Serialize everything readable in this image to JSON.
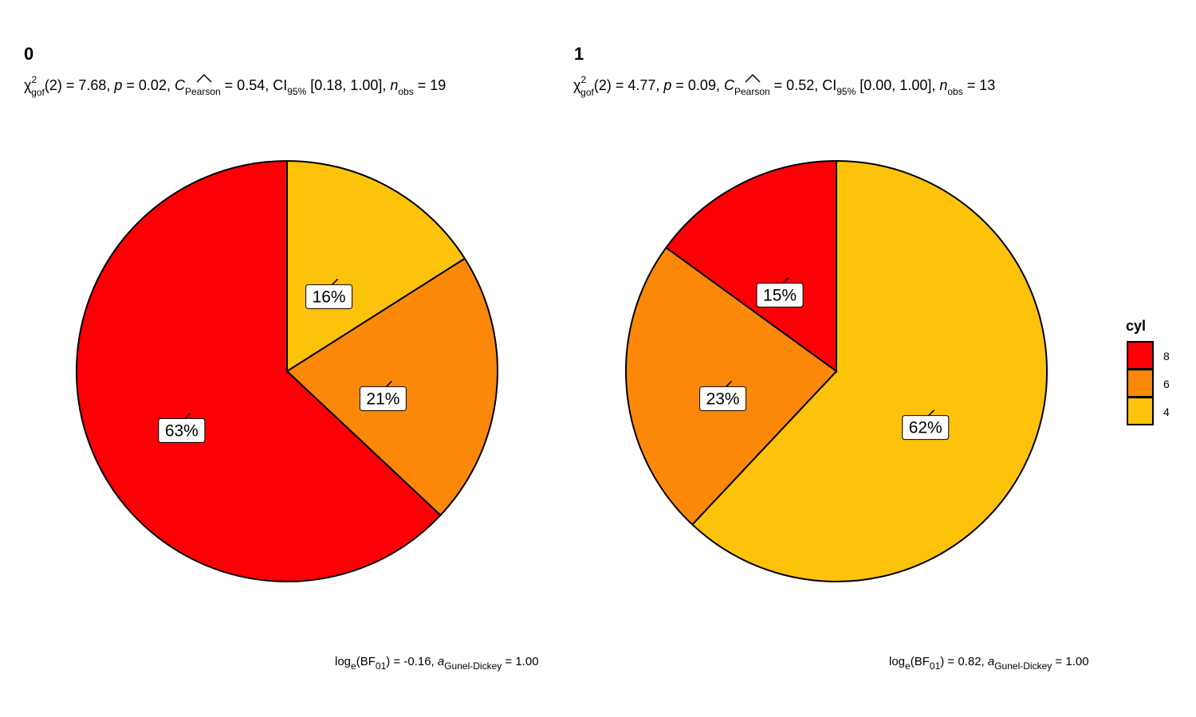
{
  "chart_data": [
    {
      "type": "pie",
      "title": "0",
      "subtitle": {
        "chi_sym": "χ",
        "chi_sup": "2",
        "chi_sub": "gof",
        "chi_val": "(2) = 7.68, ",
        "p_sym": "p",
        "p_val": " = 0.02, ",
        "c_sym": "C",
        "c_sub": "Pearson",
        "c_val": " = 0.54, ",
        "ci_sym": "CI",
        "ci_sub": "95%",
        "ci_val": " [0.18, 1.00], ",
        "n_sym": "n",
        "n_sub": "obs",
        "n_val": " = 19"
      },
      "caption": {
        "log_sym": "log",
        "log_sub": "e",
        "bf_open": "(BF",
        "bf_sub": "01",
        "bf_close": ")",
        "bf_val": " = -0.16, ",
        "a_sym": "a",
        "a_sub": "Gunel-Dickey",
        "a_val": " = 1.00"
      },
      "slices": [
        {
          "category": "4",
          "percent": 16,
          "label": "16%"
        },
        {
          "category": "6",
          "percent": 21,
          "label": "21%"
        },
        {
          "category": "8",
          "percent": 63,
          "label": "63%"
        }
      ]
    },
    {
      "type": "pie",
      "title": "1",
      "subtitle": {
        "chi_sym": "χ",
        "chi_sup": "2",
        "chi_sub": "gof",
        "chi_val": "(2) = 4.77, ",
        "p_sym": "p",
        "p_val": " = 0.09, ",
        "c_sym": "C",
        "c_sub": "Pearson",
        "c_val": " = 0.52, ",
        "ci_sym": "CI",
        "ci_sub": "95%",
        "ci_val": " [0.00, 1.00], ",
        "n_sym": "n",
        "n_sub": "obs",
        "n_val": " = 13"
      },
      "caption": {
        "log_sym": "log",
        "log_sub": "e",
        "bf_open": "(BF",
        "bf_sub": "01",
        "bf_close": ")",
        "bf_val": " = 0.82, ",
        "a_sym": "a",
        "a_sub": "Gunel-Dickey",
        "a_val": " = 1.00"
      },
      "slices": [
        {
          "category": "4",
          "percent": 62,
          "label": "62%"
        },
        {
          "category": "6",
          "percent": 23,
          "label": "23%"
        },
        {
          "category": "8",
          "percent": 15,
          "label": "15%"
        }
      ]
    }
  ],
  "legend": {
    "title": "cyl",
    "placement": "right",
    "items": [
      {
        "label": "8",
        "color": "#FC0006"
      },
      {
        "label": "6",
        "color": "#FB8809"
      },
      {
        "label": "4",
        "color": "#FDC20A"
      }
    ]
  }
}
